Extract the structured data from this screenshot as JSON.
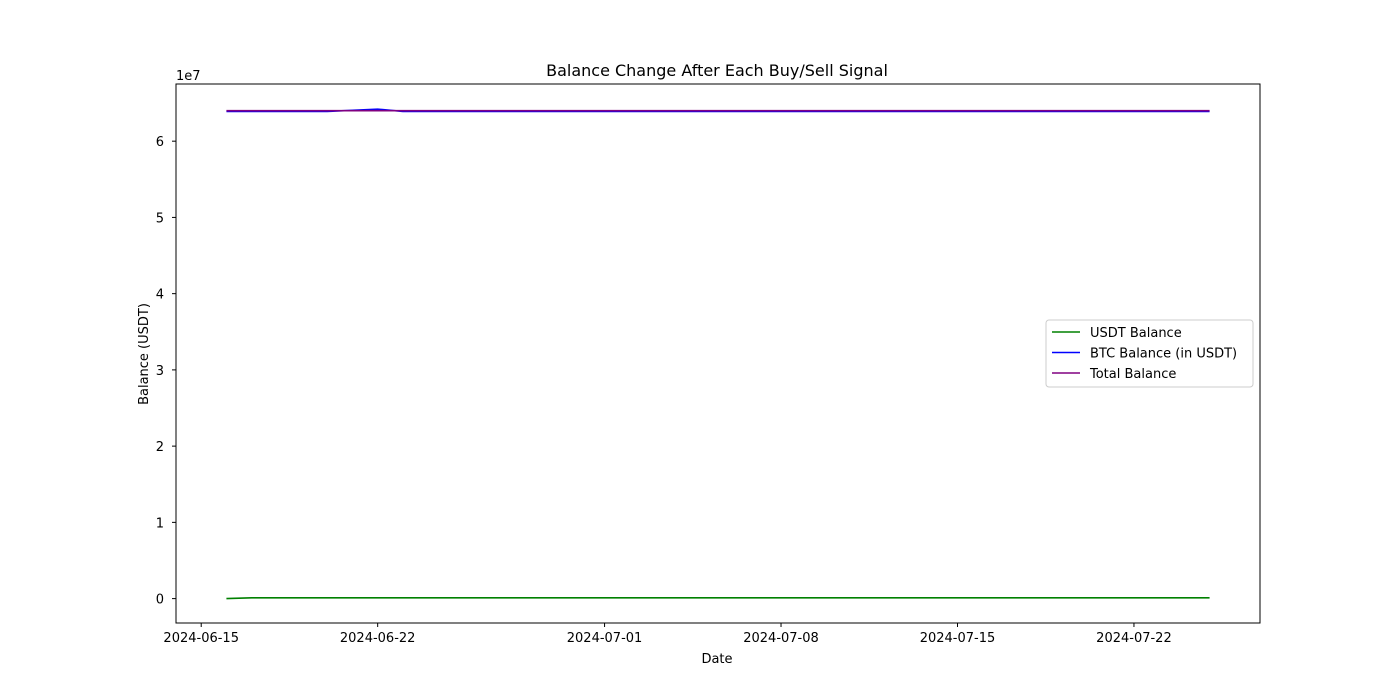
{
  "chart_data": {
    "type": "line",
    "title": "Balance Change After Each Buy/Sell Signal",
    "xlabel": "Date",
    "ylabel": "Balance (USDT)",
    "y_offset_text": "1e7",
    "x_axis_type": "date",
    "xlim": [
      "2024-06-14",
      "2024-07-27"
    ],
    "ylim": [
      -3200000,
      67500000
    ],
    "x_ticks": [
      "2024-06-15",
      "2024-06-22",
      "2024-07-01",
      "2024-07-08",
      "2024-07-15",
      "2024-07-22"
    ],
    "y_ticks": [
      0,
      10000000,
      20000000,
      30000000,
      40000000,
      50000000,
      60000000
    ],
    "y_tick_labels": [
      "0",
      "1",
      "2",
      "3",
      "4",
      "5",
      "6"
    ],
    "grid": false,
    "legend_position": "center right",
    "series": [
      {
        "name": "USDT Balance",
        "color": "#008000",
        "points": [
          [
            "2024-06-16",
            0
          ],
          [
            "2024-06-17",
            100000
          ],
          [
            "2024-07-25",
            100000
          ]
        ]
      },
      {
        "name": "BTC Balance (in USDT)",
        "color": "#0000ff",
        "points": [
          [
            "2024-06-16",
            63900000
          ],
          [
            "2024-06-20",
            63900000
          ],
          [
            "2024-06-22",
            64200000
          ],
          [
            "2024-06-23",
            63900000
          ],
          [
            "2024-07-25",
            63900000
          ]
        ]
      },
      {
        "name": "Total Balance",
        "color": "#800080",
        "points": [
          [
            "2024-06-16",
            64000000
          ],
          [
            "2024-07-25",
            64000000
          ]
        ]
      }
    ]
  }
}
